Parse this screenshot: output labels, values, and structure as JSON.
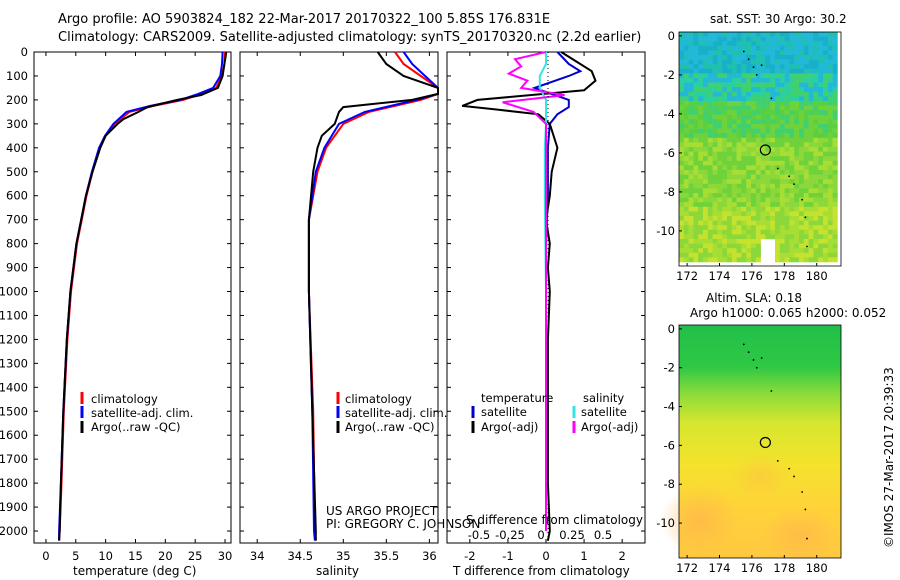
{
  "header": {
    "line1": "Argo profile: AO 5903824_182 22-Mar-2017 20170322_100 5.85S 176.831E",
    "line2": "Climatology: CARS2009. Satellite-adjusted climatology: synTS_20170320.nc (2.2d earlier)"
  },
  "credits": {
    "project": "US ARGO PROJECT",
    "pi": "PI: GREGORY C. JOHNSON",
    "imos": "©IMOS 27-Mar-2017 20:39:33"
  },
  "maps": {
    "sst_title": "sat. SST: 30 Argo: 30.2",
    "sla_title1": "Altim. SLA: 0.18",
    "sla_title2": "Argo h1000: 0.065 h2000: 0.052"
  },
  "colors": {
    "climatology": "#ff0000",
    "satellite": "#0000ff",
    "argo": "#000000",
    "t_sat": "#0000cc",
    "s_sat": "#33e6e6",
    "s_argo": "#ff00ff"
  },
  "chart_data": [
    {
      "type": "line",
      "panel": "temperature",
      "xlabel": "temperature (deg C)",
      "ylabel": "",
      "xlim": [
        -2,
        31
      ],
      "ylim": [
        2050,
        0
      ],
      "xticks": [
        0,
        5,
        10,
        15,
        20,
        25,
        30
      ],
      "yticks": [
        0,
        100,
        200,
        300,
        400,
        500,
        600,
        700,
        800,
        900,
        1000,
        1100,
        1200,
        1300,
        1400,
        1500,
        1600,
        1700,
        1800,
        1900,
        2000
      ],
      "legend": [
        "climatology",
        "satellite-adj. clim.",
        "Argo(..raw -QC)"
      ],
      "series": [
        {
          "name": "climatology",
          "depth": [
            0,
            50,
            100,
            150,
            175,
            200,
            225,
            250,
            300,
            350,
            400,
            500,
            600,
            700,
            800,
            1000,
            1200,
            1500,
            1800,
            2000,
            2040
          ],
          "values": [
            30,
            29.9,
            29.5,
            28.5,
            26,
            23,
            18,
            14,
            11.5,
            10,
            9,
            7.8,
            6.8,
            6,
            5.2,
            4.2,
            3.6,
            3,
            2.6,
            2.3,
            2.2
          ]
        },
        {
          "name": "satellite-adj. clim.",
          "depth": [
            0,
            50,
            100,
            150,
            175,
            200,
            225,
            250,
            300,
            350,
            400,
            500,
            600,
            700,
            800,
            1000,
            1200,
            1500,
            1800,
            2000,
            2040
          ],
          "values": [
            29.6,
            29.5,
            29.2,
            28,
            25.5,
            22.5,
            17.5,
            13.5,
            11.3,
            9.9,
            8.9,
            7.7,
            6.7,
            5.9,
            5.1,
            4.1,
            3.5,
            2.9,
            2.5,
            2.2,
            2.2
          ]
        },
        {
          "name": "Argo(..raw -QC)",
          "depth": [
            0,
            20,
            50,
            100,
            150,
            180,
            200,
            230,
            250,
            280,
            300,
            350,
            400,
            500,
            600,
            700,
            800,
            1000,
            1200,
            1500,
            1800,
            2000,
            2040
          ],
          "values": [
            30.2,
            30.1,
            29.9,
            29.6,
            28.8,
            26,
            22,
            17,
            15.5,
            13,
            12,
            10,
            9.1,
            7.8,
            6.7,
            5.9,
            5.1,
            4.1,
            3.5,
            2.9,
            2.5,
            2.3,
            2.2
          ]
        }
      ]
    },
    {
      "type": "line",
      "panel": "salinity",
      "xlabel": "salinity",
      "xlim": [
        33.8,
        36.1
      ],
      "ylim": [
        2050,
        0
      ],
      "xticks": [
        34,
        34.5,
        35,
        35.5,
        36
      ],
      "legend": [
        "climatology",
        "satellite-adj. clim.",
        "Argo(..raw -QC)"
      ],
      "series": [
        {
          "name": "climatology",
          "depth": [
            0,
            50,
            100,
            150,
            175,
            200,
            250,
            300,
            400,
            500,
            700,
            1000,
            1500,
            2000,
            2040
          ],
          "values": [
            35.6,
            35.7,
            35.9,
            36.1,
            36.1,
            35.9,
            35.3,
            35.0,
            34.8,
            34.7,
            34.6,
            34.6,
            34.65,
            34.67,
            34.68
          ]
        },
        {
          "name": "satellite-adj. clim.",
          "depth": [
            0,
            50,
            100,
            150,
            175,
            200,
            250,
            300,
            400,
            500,
            700,
            1000,
            1500,
            2000,
            2040
          ],
          "values": [
            35.7,
            35.8,
            35.95,
            36.1,
            36.1,
            35.85,
            35.25,
            34.95,
            34.78,
            34.68,
            34.6,
            34.6,
            34.64,
            34.66,
            34.67
          ]
        },
        {
          "name": "Argo(..raw -QC)",
          "depth": [
            0,
            50,
            100,
            150,
            175,
            200,
            230,
            250,
            300,
            350,
            400,
            500,
            700,
            1000,
            1500,
            2000,
            2040
          ],
          "values": [
            35.4,
            35.5,
            35.7,
            36.1,
            36.1,
            35.8,
            35.0,
            34.95,
            34.9,
            34.75,
            34.7,
            34.65,
            34.6,
            34.6,
            34.64,
            34.68,
            34.68
          ]
        }
      ]
    },
    {
      "type": "line",
      "panel": "difference",
      "xlabel": "T difference from climatology",
      "xlabel_top": "S difference from climatology",
      "xlim": [
        -2.6,
        2.6
      ],
      "ylim": [
        2050,
        0
      ],
      "xticks": [
        -2,
        -1,
        0,
        1,
        2
      ],
      "xticks_top": [
        "-0.5",
        "-0.25",
        "0",
        "0.25",
        "0.5"
      ],
      "legend_titles": [
        "temperature",
        "salinity"
      ],
      "legend": [
        "satellite",
        "Argo(-adj)",
        "satellite",
        "Argo(-adj)"
      ],
      "series": [
        {
          "name": "temperature satellite",
          "depth": [
            0,
            50,
            80,
            100,
            150,
            200,
            230,
            260,
            300,
            400,
            600,
            800,
            1000,
            1500,
            2000
          ],
          "values": [
            0.3,
            0.6,
            0.9,
            0.6,
            -0.3,
            0.6,
            0.6,
            0.3,
            0.1,
            0.05,
            0.05,
            0.0,
            0.0,
            0.0,
            0.0
          ]
        },
        {
          "name": "temperature Argo(-adj)",
          "depth": [
            0,
            40,
            80,
            120,
            160,
            200,
            225,
            240,
            260,
            300,
            350,
            400,
            500,
            600,
            700,
            800,
            900,
            1000,
            1200,
            1500,
            1800,
            2000,
            2040
          ],
          "values": [
            0.4,
            0.8,
            1.2,
            1.3,
            1.0,
            -1.8,
            -2.2,
            -1.3,
            -0.2,
            0.1,
            0.2,
            0.3,
            0.15,
            0.1,
            0.0,
            0.1,
            0.05,
            0.1,
            0.05,
            0.05,
            0.05,
            0.1,
            0.05
          ]
        },
        {
          "name": "salinity satellite",
          "depth": [
            0,
            50,
            100,
            150,
            200,
            250,
            300,
            400,
            600,
            1000,
            1500,
            2000
          ],
          "values": [
            0.0,
            0.0,
            -0.05,
            -0.05,
            0.0,
            0.0,
            0.0,
            -0.01,
            -0.01,
            0.0,
            0.0,
            0.0
          ]
        },
        {
          "name": "salinity Argo(-adj)",
          "depth": [
            0,
            30,
            60,
            90,
            120,
            150,
            180,
            210,
            250,
            300,
            400,
            600,
            1000,
            1500,
            2000
          ],
          "values": [
            0.0,
            -0.25,
            -0.2,
            -0.3,
            -0.15,
            -0.2,
            0.15,
            -0.35,
            -0.1,
            0.0,
            0.0,
            0.0,
            0.0,
            0.0,
            0.0
          ]
        }
      ]
    },
    {
      "type": "heatmap",
      "panel": "sst-map",
      "title": "sat. SST: 30 Argo: 30.2",
      "xlim": [
        171.5,
        181.5
      ],
      "ylim": [
        -11.8,
        0.2
      ],
      "xticks": [
        172,
        174,
        176,
        178,
        180
      ],
      "yticks": [
        0,
        -2,
        -4,
        -6,
        -8,
        -10
      ],
      "argo_position": [
        176.831,
        -5.85
      ],
      "track": [
        [
          175.5,
          -0.8
        ],
        [
          175.8,
          -1.2
        ],
        [
          176.1,
          -1.6
        ],
        [
          176.3,
          -2.0
        ],
        [
          176.6,
          -1.5
        ],
        [
          177.2,
          -3.2
        ],
        [
          177.6,
          -6.8
        ],
        [
          178.3,
          -7.2
        ],
        [
          178.6,
          -7.6
        ],
        [
          179.1,
          -8.4
        ],
        [
          179.3,
          -9.3
        ],
        [
          179.4,
          -10.8
        ]
      ]
    },
    {
      "type": "heatmap",
      "panel": "sla-map",
      "title": "Altim. SLA: 0.18 / Argo h1000: 0.065 h2000: 0.052",
      "xlim": [
        171.5,
        181.5
      ],
      "ylim": [
        -11.8,
        0.2
      ],
      "xticks": [
        172,
        174,
        176,
        178,
        180
      ],
      "yticks": [
        0,
        -2,
        -4,
        -6,
        -8,
        -10
      ],
      "argo_position": [
        176.831,
        -5.85
      ],
      "track": [
        [
          175.5,
          -0.8
        ],
        [
          175.8,
          -1.2
        ],
        [
          176.1,
          -1.6
        ],
        [
          176.3,
          -2.0
        ],
        [
          176.6,
          -1.5
        ],
        [
          177.2,
          -3.2
        ],
        [
          177.6,
          -6.8
        ],
        [
          178.3,
          -7.2
        ],
        [
          178.6,
          -7.6
        ],
        [
          179.1,
          -8.4
        ],
        [
          179.3,
          -9.3
        ],
        [
          179.4,
          -10.8
        ]
      ]
    }
  ]
}
